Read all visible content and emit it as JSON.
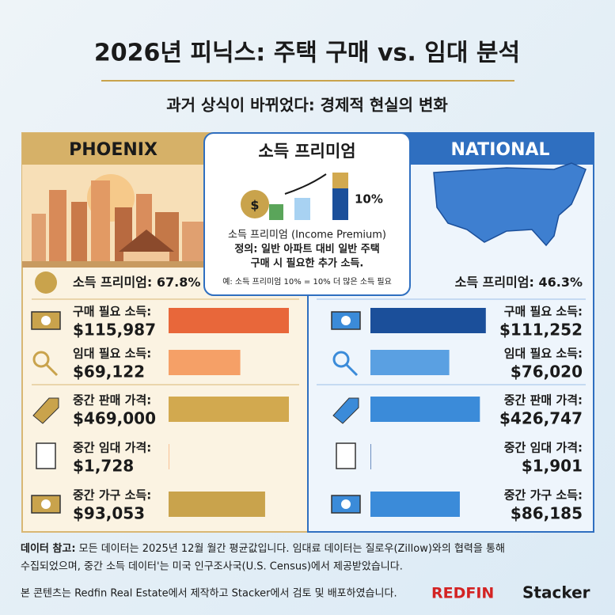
{
  "title": "2026년 피닉스: 주택 구매 vs. 임대 분석",
  "subtitle": "과거 상식이 바뀌었다: 경제적 현실의 변화",
  "callout": {
    "title": "소득 프리미엄",
    "chart_label": "10%",
    "lines": [
      "소득 프리미엄 (Income Premium)",
      "정의: 일반 아파트 대비 일반 주택",
      "구매 시 필요한 추가 소득."
    ],
    "example": "예: 소득 프리미엄 10% = 10% 더 많은 소득 필요"
  },
  "panels": [
    {
      "name": "PHOENIX",
      "premium": {
        "label": "소득 프리미엄:",
        "value": 67.8,
        "value_label": "67.8%"
      },
      "metrics": [
        {
          "label": "구매 필요 소득:",
          "value": 115987,
          "value_label": "$115,987",
          "color": "#e8673a"
        },
        {
          "label": "임대 필요 소득:",
          "value": 69122,
          "value_label": "$69,122",
          "color": "#f5a067"
        },
        {
          "label": "중간 판매 가격:",
          "value": 469000,
          "value_label": "$469,000",
          "color": "#d2a94f"
        },
        {
          "label": "중간 임대 가격:",
          "value": 1728,
          "value_label": "$1,728",
          "color": "#f59a5c"
        },
        {
          "label": "중간 가구 소득:",
          "value": 93053,
          "value_label": "$93,053",
          "color": "#c9a34c"
        }
      ]
    },
    {
      "name": "NATIONAL",
      "premium": {
        "label": "소득 프리미엄:",
        "value": 46.3,
        "value_label": "46.3%"
      },
      "metrics": [
        {
          "label": "구매 필요 소득:",
          "value": 111252,
          "value_label": "$111,252",
          "color": "#1b4f9a"
        },
        {
          "label": "임대 필요 소득:",
          "value": 76020,
          "value_label": "$76,020",
          "color": "#5aa0e2"
        },
        {
          "label": "중간 판매 가격:",
          "value": 426747,
          "value_label": "$426,747",
          "color": "#3b8bd9"
        },
        {
          "label": "중간 임대 가격:",
          "value": 1901,
          "value_label": "$1,901",
          "color": "#1b4f9a"
        },
        {
          "label": "중간 가구 소득:",
          "value": 86185,
          "value_label": "$86,185",
          "color": "#3b8bd9"
        }
      ]
    }
  ],
  "note": {
    "label": "데이터 참고:",
    "lines": [
      "모든 데이터는 2025년 12월 월간 평균값입니다. 임대료 데이터는 질로우(Zillow)와의 협력을 통해",
      "수집되었으며, 중간 소득 데이터'는 미국 인구조사국(U.S. Census)에서 제공받았습니다."
    ]
  },
  "credit": "본 콘텐츠는 Redfin Real Estate에서 제작하고 Stacker에서 검토 및 배포하였습니다.",
  "logos": [
    "REDFIN",
    "Stacker"
  ]
}
